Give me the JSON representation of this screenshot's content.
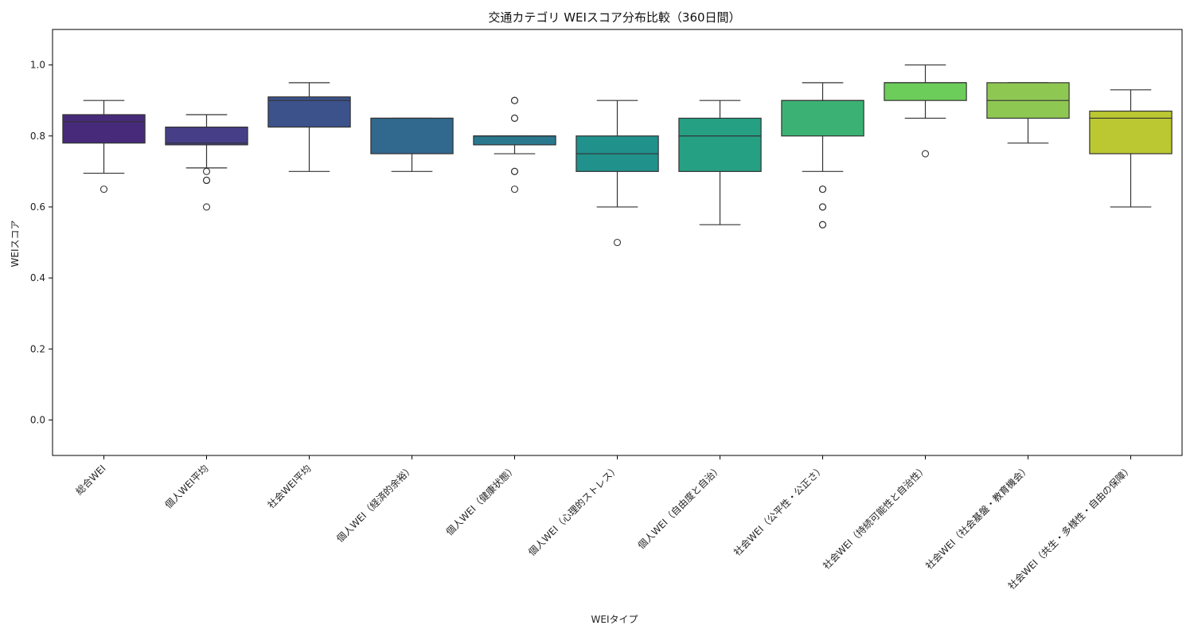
{
  "chart_data": {
    "type": "box",
    "title": "交通カテゴリ WEIスコア分布比較（360日間）",
    "xlabel": "WEIタイプ",
    "ylabel": "WEIスコア",
    "ylim": [
      -0.1,
      1.1
    ],
    "yticks": [
      0.0,
      0.2,
      0.4,
      0.6,
      0.8,
      1.0
    ],
    "ytick_labels": [
      "0.0",
      "0.2",
      "0.4",
      "0.6",
      "0.8",
      "1.0"
    ],
    "grid": false,
    "categories": [
      "総合WEI",
      "個人WEI平均",
      "社会WEI平均",
      "個人WEI（経済的余裕）",
      "個人WEI（健康状態）",
      "個人WEI（心理的ストレス）",
      "個人WEI（自由度と自治）",
      "社会WEI（公平性・公正さ）",
      "社会WEI（持続可能性と自治性）",
      "社会WEI（社会基盤・教育機会）",
      "社会WEI（共生・多様性・自由の保障）"
    ],
    "boxes": [
      {
        "whislo": 0.695,
        "q1": 0.78,
        "med": 0.84,
        "q3": 0.86,
        "whishi": 0.9,
        "fliers": [
          0.65
        ]
      },
      {
        "whislo": 0.71,
        "q1": 0.775,
        "med": 0.78,
        "q3": 0.825,
        "whishi": 0.86,
        "fliers": [
          0.7,
          0.675,
          0.675,
          0.6
        ]
      },
      {
        "whislo": 0.7,
        "q1": 0.825,
        "med": 0.9,
        "q3": 0.91,
        "whishi": 0.95,
        "fliers": []
      },
      {
        "whislo": 0.7,
        "q1": 0.75,
        "med": 0.85,
        "q3": 0.85,
        "whishi": 0.85,
        "fliers": []
      },
      {
        "whislo": 0.75,
        "q1": 0.775,
        "med": 0.8,
        "q3": 0.8,
        "whishi": 0.8,
        "fliers": [
          0.9,
          0.9,
          0.85,
          0.85,
          0.7,
          0.7,
          0.65
        ]
      },
      {
        "whislo": 0.6,
        "q1": 0.7,
        "med": 0.75,
        "q3": 0.8,
        "whishi": 0.9,
        "fliers": [
          0.5
        ]
      },
      {
        "whislo": 0.55,
        "q1": 0.7,
        "med": 0.8,
        "q3": 0.85,
        "whishi": 0.9,
        "fliers": []
      },
      {
        "whislo": 0.7,
        "q1": 0.8,
        "med": 0.9,
        "q3": 0.9,
        "whishi": 0.95,
        "fliers": [
          0.65,
          0.65,
          0.6,
          0.6,
          0.55,
          0.55
        ]
      },
      {
        "whislo": 0.85,
        "q1": 0.9,
        "med": 0.95,
        "q3": 0.95,
        "whishi": 1.0,
        "fliers": [
          0.75
        ]
      },
      {
        "whislo": 0.78,
        "q1": 0.85,
        "med": 0.9,
        "q3": 0.95,
        "whishi": 0.95,
        "fliers": []
      },
      {
        "whislo": 0.6,
        "q1": 0.75,
        "med": 0.85,
        "q3": 0.87,
        "whishi": 0.93,
        "fliers": []
      }
    ],
    "colors": [
      "#472a7a",
      "#463f88",
      "#3b528b",
      "#31688e",
      "#2a788e",
      "#21918c",
      "#26a083",
      "#3bb273",
      "#6ccd5a",
      "#8fc753",
      "#bcc832"
    ]
  }
}
